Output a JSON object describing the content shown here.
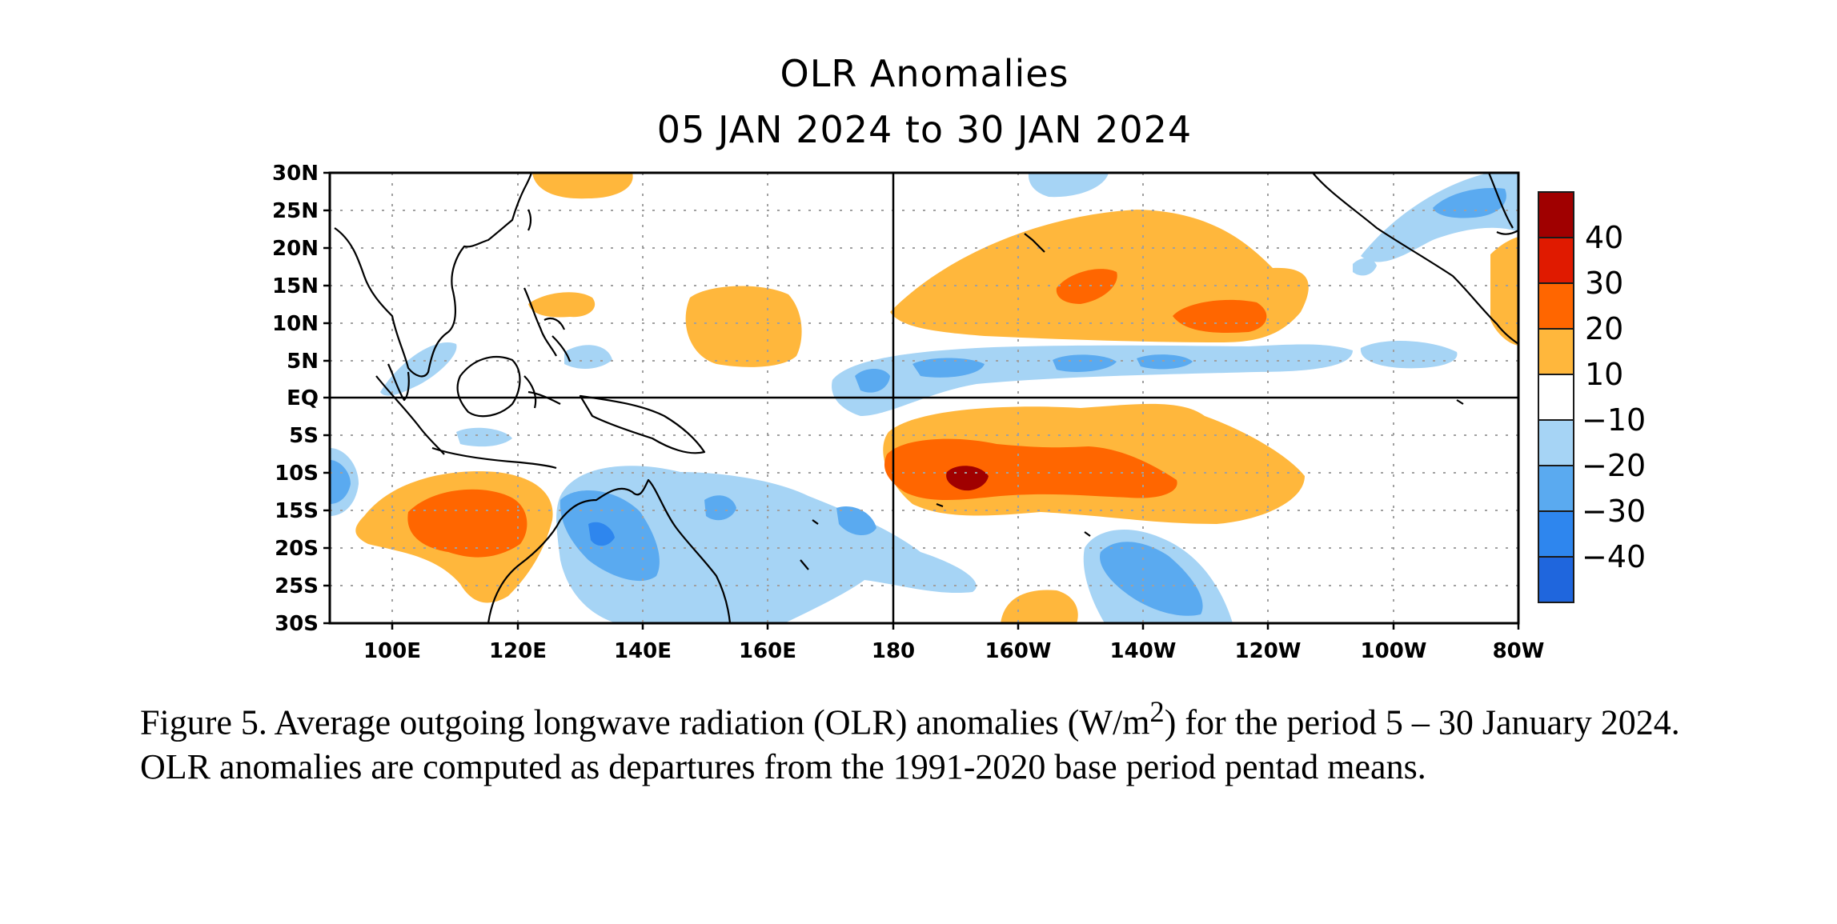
{
  "figure": {
    "title_line1": "OLR Anomalies",
    "title_line2": "05 JAN 2024 to 30 JAN 2024"
  },
  "map": {
    "lon_ticks": [
      "100E",
      "120E",
      "140E",
      "160E",
      "180",
      "160W",
      "140W",
      "120W",
      "100W",
      "80W"
    ],
    "lat_ticks": [
      "30N",
      "25N",
      "20N",
      "15N",
      "10N",
      "5N",
      "EQ",
      "5S",
      "10S",
      "15S",
      "20S",
      "25S",
      "30S"
    ],
    "lon_range_deg_east": [
      90,
      280
    ],
    "lat_range_deg": [
      -30,
      30
    ],
    "grid": "dotted",
    "reference_lines": [
      "EQ",
      "180"
    ]
  },
  "colorbar": {
    "labels": [
      "40",
      "30",
      "20",
      "10",
      "−10",
      "−20",
      "−30",
      "−40"
    ],
    "colors": [
      "#a00000",
      "#e01a00",
      "#ff6600",
      "#ffb73c",
      "#ffffff",
      "#a6d4f5",
      "#5aaaf0",
      "#2e86ee",
      "#1f66dd"
    ],
    "units": "W/m²"
  },
  "colors": {
    "pos_10": "#ffb73c",
    "pos_20": "#ff6600",
    "pos_30": "#e01a00",
    "pos_40": "#a00000",
    "neg_10": "#a6d4f5",
    "neg_20": "#5aaaf0",
    "neg_30": "#2e86ee",
    "neg_40": "#1f66dd"
  },
  "caption": {
    "lead": "Figure 5. Average outgoing longwave radiation (OLR) anomalies (W/m",
    "sup": "2",
    "rest": ") for the period 5 – 30 January 2024.  OLR anomalies are computed as departures from the 1991-2020 base period pentad means."
  }
}
